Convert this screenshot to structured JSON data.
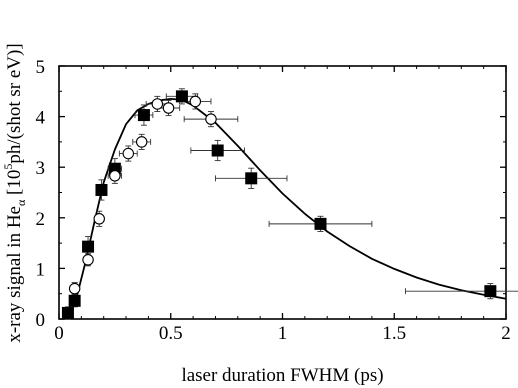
{
  "chart_data": {
    "type": "scatter",
    "xlabel": "laser duration FWHM (ps)",
    "ylabel_parts": {
      "prefix": "x-ray signal in He",
      "sub": "α",
      "open": " [10",
      "sup": "5",
      "rest": "ph/(shot sr eV)]"
    },
    "xlim": [
      0,
      2
    ],
    "ylim": [
      0,
      5
    ],
    "xticks": [
      0,
      0.5,
      1,
      1.5,
      2
    ],
    "xtick_labels": [
      "0",
      "0.5",
      "1",
      "1.5",
      "2"
    ],
    "yticks": [
      0,
      1,
      2,
      3,
      4,
      5
    ],
    "ytick_labels": [
      "0",
      "1",
      "2",
      "3",
      "4",
      "5"
    ],
    "grid": false,
    "series": [
      {
        "marker": "filled-square",
        "points": [
          {
            "x": 0.04,
            "y": 0.12,
            "xerr": 0.0,
            "yerr": 0.12
          },
          {
            "x": 0.07,
            "y": 0.36,
            "xerr": 0.0,
            "yerr": 0.12
          },
          {
            "x": 0.13,
            "y": 1.43,
            "xerr": 0.0,
            "yerr": 0.2
          },
          {
            "x": 0.19,
            "y": 2.55,
            "xerr": 0.02,
            "yerr": 0.2
          },
          {
            "x": 0.25,
            "y": 2.97,
            "xerr": 0.03,
            "yerr": 0.2
          },
          {
            "x": 0.38,
            "y": 4.03,
            "xerr": 0.04,
            "yerr": 0.2
          },
          {
            "x": 0.55,
            "y": 4.4,
            "xerr": 0.07,
            "yerr": 0.15
          },
          {
            "x": 0.71,
            "y": 3.33,
            "xerr": 0.12,
            "yerr": 0.2
          },
          {
            "x": 0.86,
            "y": 2.78,
            "xerr": 0.16,
            "yerr": 0.2
          },
          {
            "x": 1.17,
            "y": 1.88,
            "xerr": 0.23,
            "yerr": 0.15
          },
          {
            "x": 1.93,
            "y": 0.55,
            "xerr": 0.38,
            "yerr": 0.15
          }
        ]
      },
      {
        "marker": "open-circle",
        "points": [
          {
            "x": 0.07,
            "y": 0.6,
            "xerr": 0.0,
            "yerr": 0.12
          },
          {
            "x": 0.13,
            "y": 1.17,
            "xerr": 0.0,
            "yerr": 0.12
          },
          {
            "x": 0.18,
            "y": 1.98,
            "xerr": 0.02,
            "yerr": 0.15
          },
          {
            "x": 0.25,
            "y": 2.83,
            "xerr": 0.03,
            "yerr": 0.15
          },
          {
            "x": 0.31,
            "y": 3.27,
            "xerr": 0.04,
            "yerr": 0.15
          },
          {
            "x": 0.37,
            "y": 3.5,
            "xerr": 0.04,
            "yerr": 0.15
          },
          {
            "x": 0.44,
            "y": 4.25,
            "xerr": 0.05,
            "yerr": 0.15
          },
          {
            "x": 0.49,
            "y": 4.17,
            "xerr": 0.05,
            "yerr": 0.15
          },
          {
            "x": 0.61,
            "y": 4.3,
            "xerr": 0.07,
            "yerr": 0.15
          },
          {
            "x": 0.68,
            "y": 3.95,
            "xerr": 0.12,
            "yerr": 0.15
          }
        ]
      },
      {
        "marker": "fit-curve",
        "points": [
          {
            "x": 0.04,
            "y": 0.0
          },
          {
            "x": 0.08,
            "y": 0.45
          },
          {
            "x": 0.12,
            "y": 1.15
          },
          {
            "x": 0.16,
            "y": 1.95
          },
          {
            "x": 0.2,
            "y": 2.7
          },
          {
            "x": 0.25,
            "y": 3.35
          },
          {
            "x": 0.3,
            "y": 3.85
          },
          {
            "x": 0.35,
            "y": 4.12
          },
          {
            "x": 0.4,
            "y": 4.25
          },
          {
            "x": 0.45,
            "y": 4.32
          },
          {
            "x": 0.5,
            "y": 4.35
          },
          {
            "x": 0.55,
            "y": 4.33
          },
          {
            "x": 0.6,
            "y": 4.22
          },
          {
            "x": 0.7,
            "y": 3.88
          },
          {
            "x": 0.8,
            "y": 3.42
          },
          {
            "x": 0.9,
            "y": 2.94
          },
          {
            "x": 1.0,
            "y": 2.48
          },
          {
            "x": 1.1,
            "y": 2.08
          },
          {
            "x": 1.2,
            "y": 1.73
          },
          {
            "x": 1.3,
            "y": 1.44
          },
          {
            "x": 1.4,
            "y": 1.19
          },
          {
            "x": 1.5,
            "y": 0.99
          },
          {
            "x": 1.6,
            "y": 0.82
          },
          {
            "x": 1.7,
            "y": 0.68
          },
          {
            "x": 1.8,
            "y": 0.57
          },
          {
            "x": 1.9,
            "y": 0.48
          },
          {
            "x": 2.0,
            "y": 0.4
          }
        ]
      }
    ]
  }
}
